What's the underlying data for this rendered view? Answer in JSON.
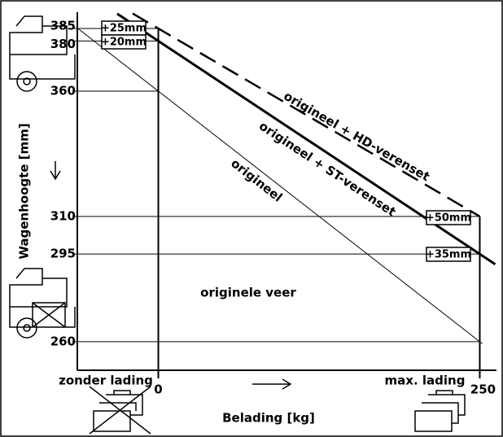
{
  "chart_data": {
    "type": "line",
    "x_label": "Belading [kg]",
    "y_label": "Wagenhoogte [mm]",
    "xlim": [
      -63,
      263
    ],
    "ylim": [
      248.6,
      391.5
    ],
    "xticks": [
      0,
      250
    ],
    "yticks": [
      260,
      295,
      310,
      360,
      380,
      385
    ],
    "series": [
      {
        "name": "origineel",
        "color": "#000000",
        "x": [
          -62,
          252
        ],
        "values": [
          384.8,
          259.2
        ]
      },
      {
        "name": "origineel + ST-verenset",
        "color": "#000000",
        "x": [
          -32,
          262
        ],
        "values": [
          390.9,
          290.9
        ]
      },
      {
        "name": "origineel + HD-verenset",
        "color": "#000000",
        "x": [
          -20,
          250
        ],
        "values": [
          391,
          310
        ]
      }
    ],
    "annotations": [
      "+25mm",
      "+20mm",
      "+50mm",
      "+35mm",
      "originele veer",
      "zonder lading",
      "max. lading"
    ]
  }
}
